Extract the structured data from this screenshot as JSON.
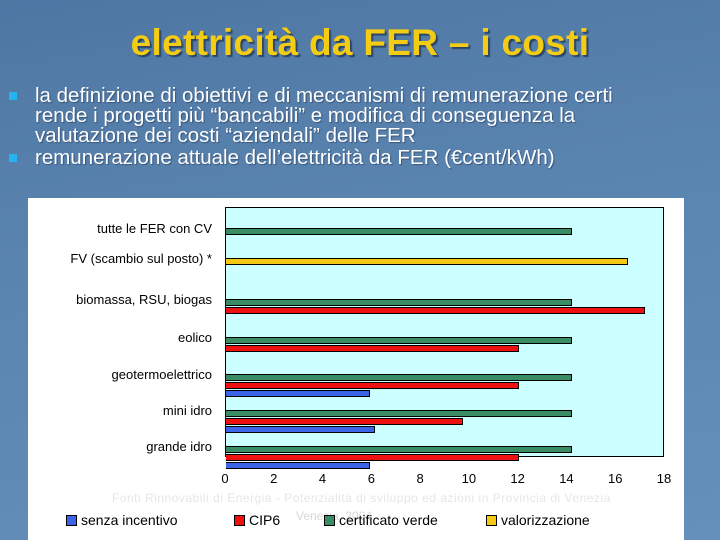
{
  "slide": {
    "title": "elettricità da FER – i costi",
    "bullets": [
      {
        "lines": [
          "la definizione di obiettivi e di meccanismi di remunerazione certi",
          "rende i progetti più “bancabili” e modifica di conseguenza la",
          "valutazione dei costi “aziendali” delle FER"
        ]
      },
      {
        "lines": [
          "remunerazione attuale dell’elettricità da FER (€cent/kWh)"
        ]
      }
    ],
    "bullet_color": "#25b4f0",
    "title_color": "#f5cc14"
  },
  "chart_data": {
    "type": "bar",
    "orientation": "horizontal",
    "title": "",
    "xlabel": "",
    "ylabel": "",
    "unit": "€cent/kWh",
    "xlim": [
      0,
      18
    ],
    "x_ticks": [
      "0",
      "2",
      "4",
      "6",
      "8",
      "10",
      "12",
      "14",
      "16",
      "18"
    ],
    "grid": false,
    "legend_position": "bottom",
    "categories": [
      "tutte le FER con CV",
      "FV  (scambio sul posto) *",
      "biomassa, RSU, biogas",
      "eolico",
      "geotermoelettrico",
      "mini idro",
      "grande idro"
    ],
    "series": [
      {
        "name": "certificato verde",
        "color": "#3a8c64",
        "values": [
          14.2,
          null,
          14.2,
          14.2,
          14.2,
          14.2,
          14.2
        ]
      },
      {
        "name": "valorizzazione",
        "color": "#f5c814",
        "values": [
          null,
          16.5,
          null,
          null,
          null,
          null,
          null
        ]
      },
      {
        "name": "CIP6",
        "color": "#ee1111",
        "values": [
          null,
          null,
          17.2,
          12.0,
          12.0,
          9.7,
          12.0
        ]
      },
      {
        "name": "senza incentivo",
        "color": "#3c64e6",
        "values": [
          null,
          null,
          null,
          null,
          5.9,
          6.1,
          5.9
        ]
      }
    ],
    "legend": [
      "senza incentivo",
      "CIP6",
      "certificato verde",
      "valorizzazione"
    ],
    "source_note": "Fonti Rinnovabili di Energia - Potenzialità di sviluppo ed azioni in Provincia di Venezia",
    "source_note_2": "Venezia, 2004"
  }
}
